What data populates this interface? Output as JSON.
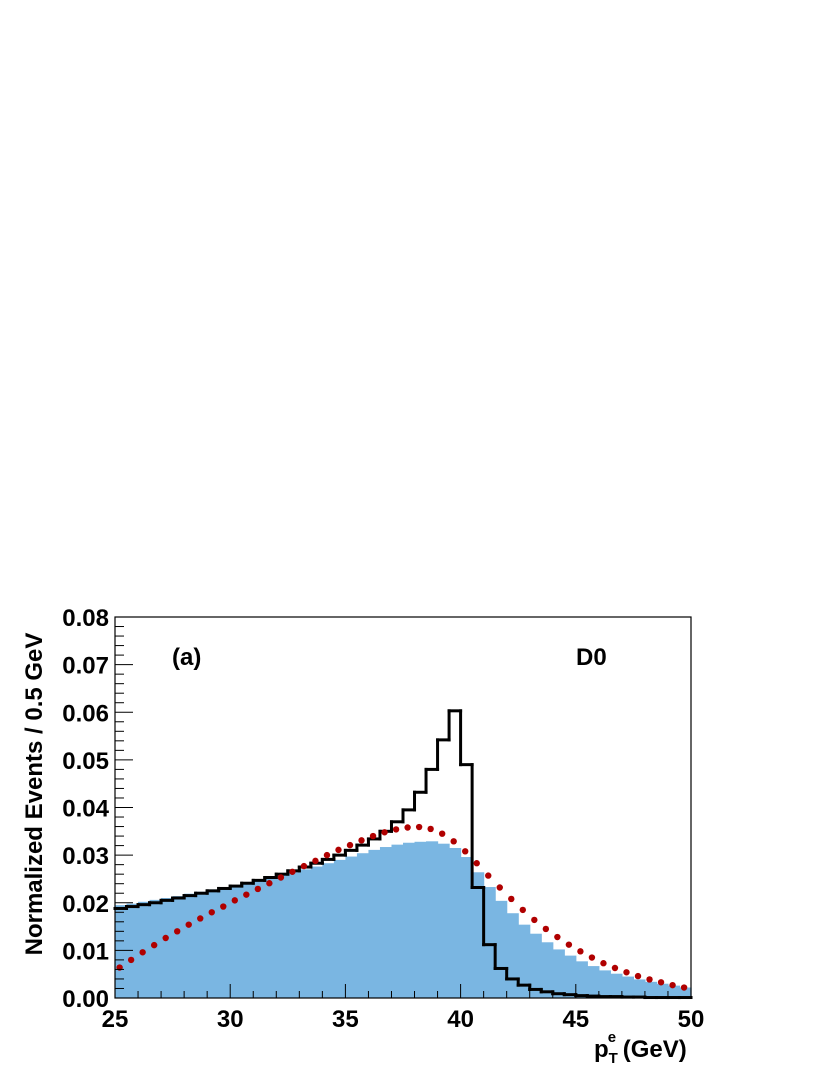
{
  "chart_data": {
    "type": "histogram",
    "xlabel": {
      "main": "p",
      "sup": "e",
      "sub": "T",
      "unit": " (GeV)"
    },
    "ylabel": "Normalized Events / 0.5 GeV",
    "xlim": [
      25,
      50
    ],
    "ylim": [
      0,
      0.08
    ],
    "x_ticks": [
      "25",
      "30",
      "35",
      "40",
      "45",
      "50"
    ],
    "y_ticks": [
      "0.00",
      "0.01",
      "0.02",
      "0.03",
      "0.04",
      "0.05",
      "0.06",
      "0.07",
      "0.08"
    ],
    "annotations": {
      "panel": "(a)",
      "experiment": "D0"
    },
    "bin_width": 0.5,
    "series": [
      {
        "style": "filled-histogram",
        "color": "#7ab6e2",
        "bin_starts": [
          25.0,
          25.5,
          26.0,
          26.5,
          27.0,
          27.5,
          28.0,
          28.5,
          29.0,
          29.5,
          30.0,
          30.5,
          31.0,
          31.5,
          32.0,
          32.5,
          33.0,
          33.5,
          34.0,
          34.5,
          35.0,
          35.5,
          36.0,
          36.5,
          37.0,
          37.5,
          38.0,
          38.5,
          39.0,
          39.5,
          40.0,
          40.5,
          41.0,
          41.5,
          42.0,
          42.5,
          43.0,
          43.5,
          44.0,
          44.5,
          45.0,
          45.5,
          46.0,
          46.5,
          47.0,
          47.5,
          48.0,
          48.5,
          49.0,
          49.5
        ],
        "values": [
          0.0195,
          0.0198,
          0.0202,
          0.0206,
          0.021,
          0.0214,
          0.0219,
          0.0223,
          0.0228,
          0.0232,
          0.0237,
          0.0242,
          0.0247,
          0.0252,
          0.0258,
          0.0264,
          0.027,
          0.0276,
          0.0283,
          0.029,
          0.0297,
          0.0304,
          0.0311,
          0.0317,
          0.0322,
          0.0326,
          0.0328,
          0.0329,
          0.0324,
          0.0315,
          0.0296,
          0.0264,
          0.0233,
          0.0204,
          0.0178,
          0.0154,
          0.0135,
          0.0117,
          0.0102,
          0.0089,
          0.0077,
          0.0067,
          0.0058,
          0.0051,
          0.0045,
          0.0039,
          0.0034,
          0.003,
          0.0026,
          0.0022
        ]
      },
      {
        "style": "step-line",
        "color": "#000000",
        "bin_starts": [
          25.0,
          25.5,
          26.0,
          26.5,
          27.0,
          27.5,
          28.0,
          28.5,
          29.0,
          29.5,
          30.0,
          30.5,
          31.0,
          31.5,
          32.0,
          32.5,
          33.0,
          33.5,
          34.0,
          34.5,
          35.0,
          35.5,
          36.0,
          36.5,
          37.0,
          37.5,
          38.0,
          38.5,
          39.0,
          39.5,
          40.0,
          40.5,
          41.0,
          41.5,
          42.0,
          42.5,
          43.0,
          43.5,
          44.0,
          44.5,
          45.0,
          45.5,
          46.0,
          46.5,
          47.0,
          47.5,
          48.0,
          48.5,
          49.0,
          49.5
        ],
        "values": [
          0.0188,
          0.0192,
          0.0196,
          0.02,
          0.0205,
          0.021,
          0.0215,
          0.022,
          0.0225,
          0.023,
          0.0235,
          0.0241,
          0.0247,
          0.0253,
          0.026,
          0.0267,
          0.0275,
          0.0283,
          0.0291,
          0.03,
          0.031,
          0.0321,
          0.0334,
          0.035,
          0.037,
          0.0395,
          0.0432,
          0.048,
          0.0542,
          0.0603,
          0.049,
          0.0232,
          0.0112,
          0.0062,
          0.004,
          0.0027,
          0.0018,
          0.0013,
          0.0009,
          0.0007,
          0.0005,
          0.0004,
          0.0003,
          0.0003,
          0.0002,
          0.0002,
          0.0001,
          0.0001,
          0.0001,
          0.0001
        ]
      },
      {
        "style": "dotted-curve",
        "color": "#b00000",
        "x": [
          25.2,
          25.7,
          26.2,
          26.7,
          27.2,
          27.7,
          28.2,
          28.7,
          29.2,
          29.7,
          30.2,
          30.7,
          31.2,
          31.7,
          32.2,
          32.7,
          33.2,
          33.7,
          34.2,
          34.7,
          35.2,
          35.7,
          36.2,
          36.7,
          37.2,
          37.7,
          38.2,
          38.7,
          39.2,
          39.7,
          40.2,
          40.7,
          41.2,
          41.7,
          42.2,
          42.7,
          43.2,
          43.7,
          44.2,
          44.7,
          45.2,
          45.7,
          46.2,
          46.7,
          47.2,
          47.7,
          48.2,
          48.7,
          49.2,
          49.7
        ],
        "y": [
          0.0064,
          0.008,
          0.0096,
          0.0111,
          0.0126,
          0.014,
          0.0154,
          0.0167,
          0.018,
          0.0192,
          0.0205,
          0.0217,
          0.0229,
          0.0241,
          0.0253,
          0.0265,
          0.0277,
          0.0288,
          0.03,
          0.0311,
          0.0321,
          0.0331,
          0.034,
          0.0348,
          0.0354,
          0.0358,
          0.0359,
          0.0355,
          0.0345,
          0.0329,
          0.0308,
          0.0283,
          0.0257,
          0.0232,
          0.0208,
          0.0185,
          0.0164,
          0.0145,
          0.0128,
          0.0112,
          0.0098,
          0.0085,
          0.0073,
          0.0063,
          0.0054,
          0.0046,
          0.0039,
          0.0033,
          0.0027,
          0.0022
        ]
      }
    ]
  }
}
